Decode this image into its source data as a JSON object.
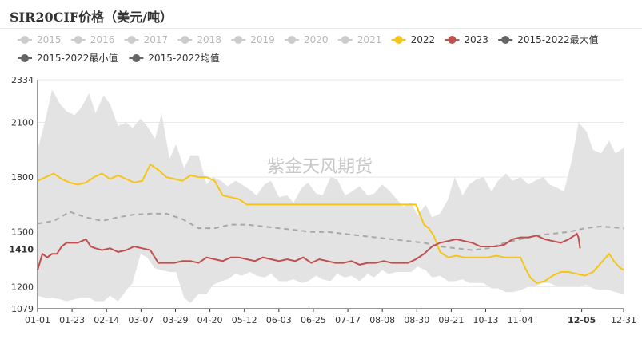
{
  "chart_data": {
    "type": "line",
    "title": "SIR20CIF价格（美元/吨）",
    "watermark": "紫金天风期货",
    "ylim": [
      1079,
      2334
    ],
    "y_ticks": [
      1079,
      1200,
      1500,
      1800,
      2100,
      2334
    ],
    "x_ticks": [
      "01-01",
      "01-23",
      "02-14",
      "03-07",
      "03-29",
      "04-20",
      "05-12",
      "06-03",
      "06-25",
      "07-17",
      "08-08",
      "08-30",
      "09-21",
      "10-13",
      "11-04",
      "11-26",
      "12-05",
      "12-31"
    ],
    "highlight": {
      "x_label": "12-05",
      "y_label": "1410",
      "color": "#b94a48"
    },
    "legend": [
      {
        "name": "2015",
        "color": "#cccccc",
        "active": false
      },
      {
        "name": "2016",
        "color": "#cccccc",
        "active": false
      },
      {
        "name": "2017",
        "color": "#cccccc",
        "active": false
      },
      {
        "name": "2018",
        "color": "#cccccc",
        "active": false
      },
      {
        "name": "2019",
        "color": "#cccccc",
        "active": false
      },
      {
        "name": "2020",
        "color": "#cccccc",
        "active": false
      },
      {
        "name": "2021",
        "color": "#cccccc",
        "active": false
      },
      {
        "name": "2022",
        "color": "#f5c518",
        "active": true
      },
      {
        "name": "2023",
        "color": "#c0504d",
        "active": true
      },
      {
        "name": "2015-2022最大值",
        "color": "#666666",
        "active": true
      },
      {
        "name": "2015-2022最小值",
        "color": "#666666",
        "active": true
      },
      {
        "name": "2015-2022均值",
        "color": "#666666",
        "active": true
      }
    ],
    "colors": {
      "band": "#e3e3e3",
      "mean": "#a8a8a8",
      "s2022": "#f5c518",
      "s2023": "#c0504d",
      "grid": "#e8e8e8"
    },
    "band": {
      "x": [
        0,
        5,
        9,
        14,
        18,
        23,
        27,
        32,
        36,
        41,
        45,
        50,
        55,
        59,
        64,
        68,
        73,
        77,
        82,
        86,
        91,
        95,
        100,
        105,
        109,
        114,
        118,
        123,
        127,
        132,
        136,
        141,
        145,
        150,
        155,
        159,
        164,
        168,
        173,
        177,
        182,
        186,
        191,
        195,
        200,
        205,
        209,
        214,
        218,
        223,
        227,
        232,
        236,
        241,
        245,
        250,
        255,
        259,
        264,
        268,
        273,
        277,
        282,
        286,
        291,
        295,
        300,
        305,
        309,
        314,
        318,
        323,
        327,
        332,
        336,
        341,
        345,
        350,
        355,
        359,
        364
      ],
      "max": [
        1950,
        2120,
        2280,
        2200,
        2160,
        2140,
        2180,
        2260,
        2150,
        2250,
        2200,
        2080,
        2100,
        2070,
        2120,
        2080,
        2010,
        2150,
        1900,
        1980,
        1850,
        1920,
        1920,
        1760,
        1800,
        1780,
        1750,
        1780,
        1760,
        1730,
        1700,
        1760,
        1780,
        1690,
        1700,
        1660,
        1740,
        1770,
        1710,
        1700,
        1800,
        1790,
        1700,
        1720,
        1750,
        1700,
        1710,
        1760,
        1730,
        1680,
        1640,
        1660,
        1590,
        1650,
        1580,
        1600,
        1680,
        1800,
        1700,
        1760,
        1790,
        1800,
        1720,
        1780,
        1820,
        1780,
        1800,
        1760,
        1780,
        1800,
        1760,
        1740,
        1720,
        1900,
        2100,
        2050,
        1950,
        1930,
        2000,
        1930,
        1960
      ],
      "min": [
        1150,
        1140,
        1140,
        1130,
        1120,
        1130,
        1140,
        1140,
        1120,
        1120,
        1150,
        1120,
        1180,
        1220,
        1380,
        1360,
        1300,
        1290,
        1280,
        1280,
        1140,
        1110,
        1160,
        1160,
        1210,
        1230,
        1240,
        1270,
        1260,
        1280,
        1260,
        1250,
        1270,
        1230,
        1230,
        1240,
        1220,
        1230,
        1260,
        1240,
        1230,
        1270,
        1250,
        1260,
        1230,
        1270,
        1250,
        1290,
        1270,
        1280,
        1280,
        1280,
        1310,
        1290,
        1250,
        1260,
        1230,
        1230,
        1240,
        1220,
        1220,
        1220,
        1190,
        1190,
        1170,
        1170,
        1180,
        1200,
        1200,
        1220,
        1220,
        1200,
        1200,
        1200,
        1200,
        1210,
        1190,
        1180,
        1180,
        1170,
        1160
      ]
    },
    "mean": {
      "x": [
        0,
        10,
        20,
        30,
        40,
        50,
        60,
        70,
        80,
        90,
        100,
        110,
        120,
        130,
        140,
        150,
        160,
        170,
        180,
        190,
        200,
        210,
        220,
        230,
        240,
        250,
        260,
        270,
        280,
        290,
        300,
        310,
        320,
        330,
        340,
        350,
        364
      ],
      "y": [
        1545,
        1560,
        1610,
        1580,
        1560,
        1580,
        1595,
        1600,
        1600,
        1570,
        1520,
        1520,
        1540,
        1540,
        1530,
        1520,
        1510,
        1500,
        1500,
        1490,
        1480,
        1470,
        1460,
        1450,
        1440,
        1420,
        1410,
        1400,
        1410,
        1440,
        1460,
        1480,
        1490,
        1500,
        1520,
        1530,
        1520
      ]
    },
    "series": [
      {
        "name": "2022",
        "x": [
          0,
          5,
          10,
          15,
          20,
          25,
          30,
          35,
          40,
          45,
          50,
          55,
          60,
          65,
          70,
          75,
          80,
          85,
          90,
          95,
          100,
          105,
          110,
          115,
          120,
          125,
          130,
          135,
          140,
          145,
          150,
          155,
          160,
          170,
          180,
          190,
          200,
          210,
          220,
          230,
          235,
          240,
          243,
          246,
          250,
          255,
          260,
          265,
          270,
          275,
          280,
          285,
          290,
          295,
          300,
          303,
          306,
          310,
          315,
          320,
          325,
          330,
          335,
          340,
          345,
          350,
          355,
          358,
          361,
          364
        ],
        "y": [
          1780,
          1800,
          1820,
          1790,
          1770,
          1760,
          1770,
          1800,
          1820,
          1790,
          1810,
          1790,
          1770,
          1780,
          1870,
          1840,
          1800,
          1790,
          1780,
          1810,
          1800,
          1800,
          1780,
          1700,
          1690,
          1680,
          1650,
          1650,
          1650,
          1650,
          1650,
          1650,
          1650,
          1650,
          1650,
          1650,
          1650,
          1650,
          1650,
          1650,
          1650,
          1540,
          1520,
          1480,
          1390,
          1360,
          1370,
          1360,
          1360,
          1360,
          1360,
          1370,
          1360,
          1360,
          1360,
          1300,
          1250,
          1220,
          1230,
          1260,
          1280,
          1280,
          1270,
          1260,
          1280,
          1330,
          1380,
          1340,
          1310,
          1290
        ]
      },
      {
        "name": "2023",
        "x": [
          0,
          3,
          6,
          9,
          12,
          15,
          18,
          20,
          25,
          30,
          33,
          36,
          40,
          45,
          50,
          55,
          60,
          65,
          70,
          75,
          80,
          85,
          90,
          95,
          100,
          105,
          110,
          115,
          120,
          125,
          130,
          135,
          140,
          145,
          150,
          155,
          160,
          165,
          170,
          175,
          180,
          185,
          190,
          195,
          200,
          205,
          210,
          215,
          220,
          225,
          230,
          235,
          240,
          245,
          250,
          255,
          260,
          265,
          270,
          275,
          280,
          285,
          290,
          295,
          300,
          305,
          310,
          315,
          320,
          325,
          330,
          335,
          336,
          337
        ],
        "y": [
          1290,
          1380,
          1360,
          1380,
          1380,
          1420,
          1440,
          1440,
          1440,
          1460,
          1420,
          1410,
          1400,
          1410,
          1390,
          1400,
          1420,
          1410,
          1400,
          1330,
          1330,
          1330,
          1340,
          1340,
          1330,
          1360,
          1350,
          1340,
          1360,
          1360,
          1350,
          1340,
          1360,
          1350,
          1340,
          1350,
          1340,
          1360,
          1330,
          1350,
          1340,
          1330,
          1330,
          1340,
          1320,
          1330,
          1330,
          1340,
          1330,
          1330,
          1330,
          1350,
          1380,
          1420,
          1440,
          1450,
          1460,
          1450,
          1440,
          1420,
          1420,
          1420,
          1430,
          1460,
          1470,
          1470,
          1480,
          1460,
          1450,
          1440,
          1460,
          1490,
          1470,
          1410
        ]
      }
    ]
  }
}
